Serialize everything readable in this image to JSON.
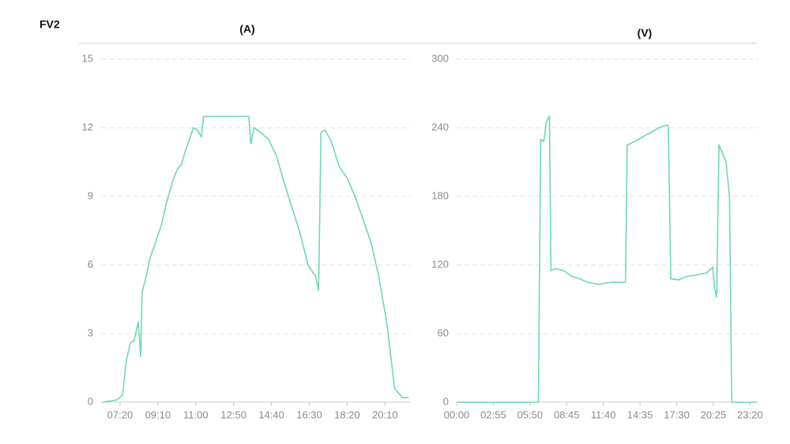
{
  "heading": "FV2",
  "chart_data": [
    {
      "type": "line",
      "title": "(A)",
      "color": "#6dd9b0",
      "grid": true,
      "x": [
        390,
        431,
        447,
        458,
        470,
        481,
        493,
        500,
        504,
        516,
        527,
        539,
        550,
        561,
        573,
        584,
        596,
        607,
        619,
        630,
        642,
        653,
        665,
        676,
        683,
        722,
        779,
        814,
        820,
        830,
        848,
        871,
        894,
        917,
        940,
        963,
        986,
        1008,
        1017,
        1024,
        1036,
        1054,
        1077,
        1100,
        1123,
        1146,
        1169,
        1192,
        1215,
        1227,
        1238,
        1261,
        1279
      ],
      "values": [
        0,
        0.1,
        0.3,
        1.8,
        2.6,
        2.7,
        3.5,
        2.0,
        4.8,
        5.5,
        6.3,
        6.8,
        7.3,
        7.8,
        8.6,
        9.2,
        9.8,
        10.2,
        10.4,
        11.0,
        11.5,
        12.0,
        11.9,
        11.6,
        12.5,
        12.5,
        12.5,
        12.5,
        11.3,
        12.0,
        11.8,
        11.5,
        10.8,
        9.6,
        8.5,
        7.4,
        6.0,
        5.5,
        4.9,
        11.8,
        11.9,
        11.4,
        10.3,
        9.8,
        9.0,
        8.0,
        7.0,
        5.5,
        3.5,
        2.0,
        0.6,
        0.2,
        0.2
      ],
      "xlim": [
        385,
        1285
      ],
      "xticks": [
        {
          "value": 440,
          "label": "07:20"
        },
        {
          "value": 550,
          "label": "09:10"
        },
        {
          "value": 660,
          "label": "11:00"
        },
        {
          "value": 770,
          "label": "12:50"
        },
        {
          "value": 880,
          "label": "14:40"
        },
        {
          "value": 990,
          "label": "16:30"
        },
        {
          "value": 1100,
          "label": "18:20"
        },
        {
          "value": 1210,
          "label": "20:10"
        }
      ],
      "ylim": [
        0,
        15
      ],
      "yticks": [
        0,
        3,
        6,
        9,
        12,
        15
      ]
    },
    {
      "type": "line",
      "title": "(V)",
      "color": "#6dd9b0",
      "grid": true,
      "x": [
        0,
        390,
        401,
        416,
        428,
        443,
        450,
        473,
        511,
        549,
        586,
        624,
        681,
        738,
        806,
        814,
        851,
        889,
        927,
        965,
        995,
        1010,
        1022,
        1059,
        1097,
        1135,
        1192,
        1222,
        1230,
        1241,
        1252,
        1268,
        1286,
        1302,
        1313,
        1430
      ],
      "values": [
        0,
        0,
        230,
        228,
        245,
        250,
        115,
        117,
        115,
        110,
        108,
        105,
        103,
        105,
        105,
        225,
        228,
        232,
        236,
        240,
        242,
        242,
        108,
        107,
        110,
        111,
        113,
        118,
        100,
        92,
        225,
        218,
        210,
        180,
        0,
        0
      ],
      "xlim": [
        0,
        1440
      ],
      "xticks": [
        {
          "value": 0,
          "label": "00:00"
        },
        {
          "value": 175,
          "label": "02:55"
        },
        {
          "value": 350,
          "label": "05:50"
        },
        {
          "value": 525,
          "label": "08:45"
        },
        {
          "value": 700,
          "label": "11:40"
        },
        {
          "value": 875,
          "label": "14:35"
        },
        {
          "value": 1050,
          "label": "17:30"
        },
        {
          "value": 1225,
          "label": "20:25"
        },
        {
          "value": 1400,
          "label": "23:20"
        }
      ],
      "ylim": [
        0,
        300
      ],
      "yticks": [
        0,
        60,
        120,
        180,
        240,
        300
      ]
    }
  ]
}
